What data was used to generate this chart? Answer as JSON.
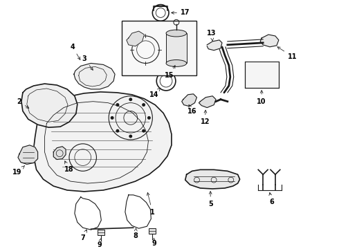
{
  "bg_color": "#ffffff",
  "line_color": "#1a1a1a",
  "label_color": "#000000",
  "fig_width": 4.9,
  "fig_height": 3.6,
  "dpi": 100
}
